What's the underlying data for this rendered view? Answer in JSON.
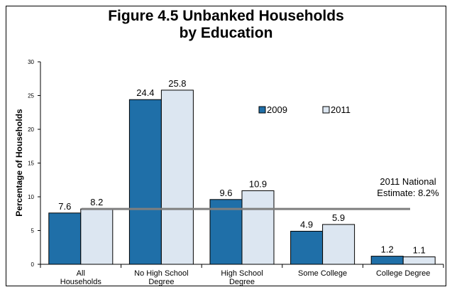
{
  "chart_data": {
    "type": "bar",
    "title_lines": [
      "Figure 4.5  Unbanked Households",
      "by Education"
    ],
    "ylabel": "Percentage of Households",
    "xlabel": "",
    "ylim": [
      0,
      30
    ],
    "yticks": [
      0,
      5,
      10,
      15,
      20,
      25,
      30
    ],
    "categories": [
      [
        "All",
        "Households"
      ],
      [
        "No High School",
        "Degree"
      ],
      [
        "High School",
        "Degree"
      ],
      [
        "Some College"
      ],
      [
        "College Degree"
      ]
    ],
    "series": [
      {
        "name": "2009",
        "color": "#1F6FA8",
        "values": [
          7.6,
          24.4,
          9.6,
          4.9,
          1.2
        ],
        "labels": [
          "7.6",
          "24.4",
          "9.6",
          "4.9",
          "1.2"
        ]
      },
      {
        "name": "2011",
        "color": "#DCE6F1",
        "values": [
          8.2,
          25.8,
          10.9,
          5.9,
          1.1
        ],
        "labels": [
          "8.2",
          "25.8",
          "10.9",
          "5.9",
          "1.1"
        ]
      }
    ],
    "reference_line": {
      "value": 8.2,
      "color": "#7F7F7F",
      "label_lines": [
        "2011 National",
        "Estimate: 8.2%"
      ]
    },
    "legend_position": "upper-right",
    "grid": false
  }
}
